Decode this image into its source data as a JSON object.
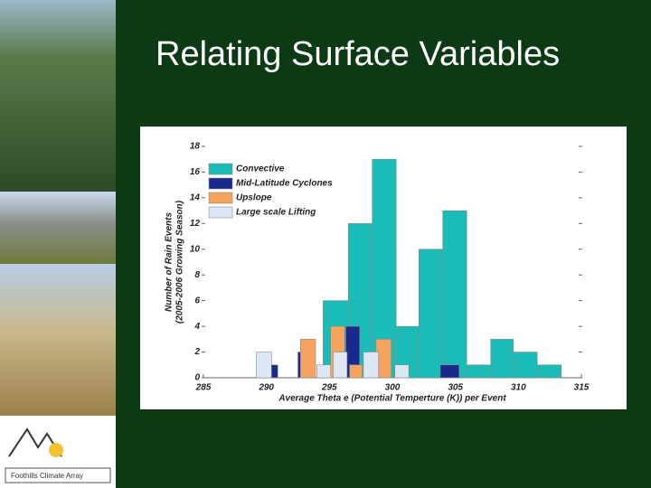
{
  "slide": {
    "title": "Relating Surface Variables",
    "logo_text": "Foothills Climate Array"
  },
  "chart_data": {
    "type": "histogram",
    "xlabel": "Average Theta e (Potential Temperture (K)) per Event",
    "ylabel": [
      "Number of Rain Events",
      "(2005-2006 Growing Season)"
    ],
    "xlim": [
      285,
      315
    ],
    "xticks": [
      285,
      290,
      295,
      300,
      305,
      310,
      315
    ],
    "ylim": [
      0,
      18
    ],
    "yticks": [
      0,
      2,
      4,
      6,
      8,
      10,
      12,
      14,
      16,
      18
    ],
    "legend": "upper left",
    "series": [
      {
        "name": "Convective",
        "color": "#1bbcb8",
        "bins": [
          294.5,
          296.5,
          298.4,
          300.3,
          302.1,
          304,
          305.9,
          307.8,
          309.6,
          311.5,
          313.4
        ],
        "values": [
          6,
          12,
          17,
          4,
          10,
          13,
          1,
          3,
          2,
          1
        ]
      },
      {
        "name": "Mid-Latitude Cyclones",
        "color": "#1a2a8c",
        "bins": [
          290.4,
          290.9,
          292.5,
          293.0,
          296.3,
          297.4,
          303.8,
          305.3
        ],
        "values": [
          1,
          0,
          2,
          0,
          4,
          0,
          1
        ]
      },
      {
        "name": "Upslope",
        "color": "#f6a35e",
        "bins": [
          292.7,
          293.9,
          295.1,
          296.2,
          296.6,
          297.6,
          298.7,
          299.9
        ],
        "values": [
          3,
          0,
          4,
          0,
          1,
          0,
          3
        ]
      },
      {
        "name": "Large scale Lifting",
        "color": "#dde8f6",
        "bins": [
          289.2,
          290.4,
          294.0,
          295.1,
          295.3,
          296.4,
          297.7,
          298.9,
          300.2,
          301.3
        ],
        "values": [
          2,
          0,
          1,
          0,
          2,
          0,
          2,
          0,
          1
        ]
      }
    ]
  }
}
